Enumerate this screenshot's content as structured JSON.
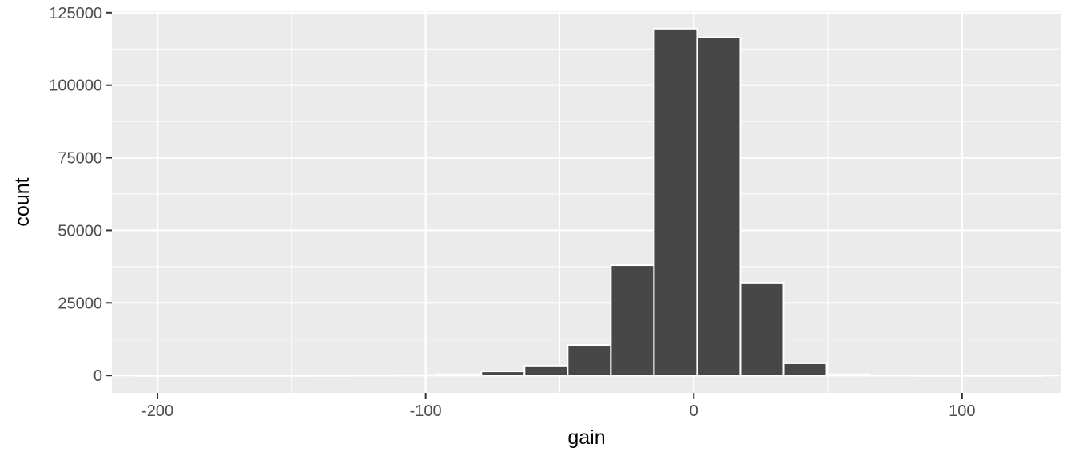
{
  "chart_data": {
    "type": "bar",
    "title": "",
    "xlabel": "gain",
    "ylabel": "count",
    "xlim": [
      -217,
      137
    ],
    "ylim": [
      -6000,
      125500
    ],
    "x_ticks": [
      -200,
      -100,
      0,
      100
    ],
    "x_tick_labels": [
      "-200",
      "-100",
      "0",
      "100"
    ],
    "y_ticks": [
      0,
      25000,
      50000,
      75000,
      100000,
      125000
    ],
    "y_tick_labels": [
      "0",
      "25000",
      "50000",
      "75000",
      "100000",
      "125000"
    ],
    "bin_width": 16.1,
    "bins": [
      {
        "x": -200,
        "count": 5
      },
      {
        "x": -183.9,
        "count": 5
      },
      {
        "x": -167.8,
        "count": 10
      },
      {
        "x": -151.7,
        "count": 15
      },
      {
        "x": -135.6,
        "count": 25
      },
      {
        "x": -119.5,
        "count": 60
      },
      {
        "x": -103.4,
        "count": 160
      },
      {
        "x": -87.3,
        "count": 400
      },
      {
        "x": -71.2,
        "count": 1400
      },
      {
        "x": -55.1,
        "count": 3400
      },
      {
        "x": -39.0,
        "count": 10500
      },
      {
        "x": -22.9,
        "count": 38000
      },
      {
        "x": -6.8,
        "count": 119500
      },
      {
        "x": 9.3,
        "count": 116500
      },
      {
        "x": 25.4,
        "count": 32000
      },
      {
        "x": 41.5,
        "count": 4200
      },
      {
        "x": 57.6,
        "count": 400
      },
      {
        "x": 73.7,
        "count": 60
      },
      {
        "x": 89.8,
        "count": 10
      },
      {
        "x": 105.9,
        "count": 5
      },
      {
        "x": 122.0,
        "count": 3
      }
    ],
    "grid": true,
    "colors": {
      "panel_background": "#ebebeb",
      "grid_line": "#ffffff",
      "bar_fill": "#474747",
      "bar_outline": "#ffffff",
      "tick_text": "#4d4d4d",
      "axis_title_text": "#000000"
    }
  }
}
